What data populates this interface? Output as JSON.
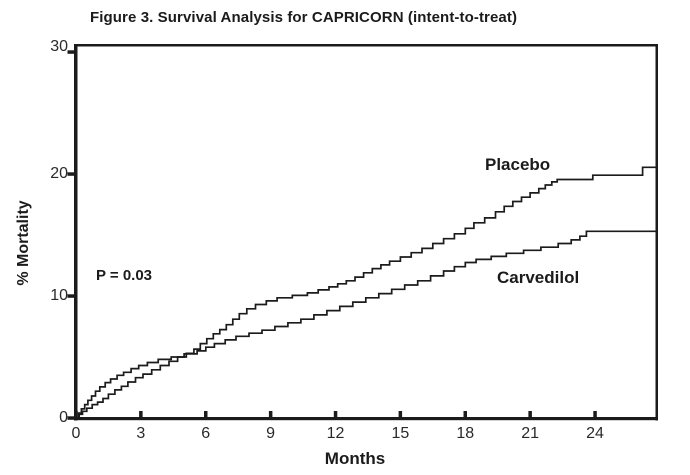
{
  "chart_data": {
    "type": "line",
    "subtype": "kaplan-meier-step",
    "title": "Figure 3. Survival Analysis for CAPRICORN (intent-to-treat)",
    "xlabel": "Months",
    "ylabel": "% Mortality",
    "xlim": [
      0,
      26.87
    ],
    "ylim": [
      0,
      30
    ],
    "x_ticks": [
      0,
      3,
      6,
      9,
      12,
      15,
      18,
      21,
      24
    ],
    "y_ticks": [
      0,
      10,
      20,
      30
    ],
    "grid": false,
    "legend": "inline-labels",
    "annotation": "P = 0.03",
    "line_color": "#1b1b1b",
    "axis_color": "#1b1b1b",
    "series": [
      {
        "name": "Placebo",
        "final_value_pct": 20.6,
        "points": [
          [
            0,
            0
          ],
          [
            0.15,
            0.3
          ],
          [
            0.3,
            0.55
          ],
          [
            0.5,
            0.8
          ],
          [
            0.75,
            1.1
          ],
          [
            1.0,
            1.3
          ],
          [
            1.25,
            1.6
          ],
          [
            1.5,
            1.95
          ],
          [
            1.8,
            2.3
          ],
          [
            2.1,
            2.6
          ],
          [
            2.4,
            2.95
          ],
          [
            2.75,
            3.3
          ],
          [
            3.1,
            3.6
          ],
          [
            3.5,
            3.95
          ],
          [
            3.9,
            4.3
          ],
          [
            4.3,
            4.65
          ],
          [
            4.7,
            5.0
          ],
          [
            5.1,
            5.3
          ],
          [
            5.45,
            5.65
          ],
          [
            5.75,
            6.1
          ],
          [
            6.05,
            6.5
          ],
          [
            6.35,
            6.9
          ],
          [
            6.65,
            7.25
          ],
          [
            6.95,
            7.65
          ],
          [
            7.25,
            8.1
          ],
          [
            7.55,
            8.55
          ],
          [
            7.9,
            8.95
          ],
          [
            8.3,
            9.3
          ],
          [
            8.8,
            9.6
          ],
          [
            9.3,
            9.85
          ],
          [
            10.0,
            10.05
          ],
          [
            10.7,
            10.25
          ],
          [
            11.2,
            10.5
          ],
          [
            11.7,
            10.75
          ],
          [
            12.1,
            11.0
          ],
          [
            12.5,
            11.25
          ],
          [
            12.9,
            11.55
          ],
          [
            13.3,
            11.9
          ],
          [
            13.7,
            12.25
          ],
          [
            14.1,
            12.55
          ],
          [
            14.5,
            12.85
          ],
          [
            15.0,
            13.2
          ],
          [
            15.5,
            13.55
          ],
          [
            16.0,
            13.9
          ],
          [
            16.5,
            14.3
          ],
          [
            17.0,
            14.7
          ],
          [
            17.5,
            15.1
          ],
          [
            18.0,
            15.55
          ],
          [
            18.4,
            16.0
          ],
          [
            18.9,
            16.4
          ],
          [
            19.4,
            16.9
          ],
          [
            19.8,
            17.35
          ],
          [
            20.2,
            17.75
          ],
          [
            20.6,
            18.1
          ],
          [
            21.0,
            18.45
          ],
          [
            21.4,
            18.8
          ],
          [
            21.7,
            19.1
          ],
          [
            22.0,
            19.35
          ],
          [
            22.25,
            19.55
          ],
          [
            23.9,
            19.9
          ],
          [
            26.2,
            20.55
          ],
          [
            26.87,
            20.55
          ]
        ]
      },
      {
        "name": "Carvedilol",
        "final_value_pct": 15.3,
        "points": [
          [
            0,
            0
          ],
          [
            0.12,
            0.4
          ],
          [
            0.25,
            0.75
          ],
          [
            0.4,
            1.1
          ],
          [
            0.55,
            1.45
          ],
          [
            0.72,
            1.8
          ],
          [
            0.9,
            2.2
          ],
          [
            1.1,
            2.55
          ],
          [
            1.35,
            2.9
          ],
          [
            1.6,
            3.2
          ],
          [
            1.9,
            3.5
          ],
          [
            2.2,
            3.75
          ],
          [
            2.55,
            4.05
          ],
          [
            2.9,
            4.3
          ],
          [
            3.3,
            4.55
          ],
          [
            3.8,
            4.8
          ],
          [
            4.4,
            5.0
          ],
          [
            5.0,
            5.25
          ],
          [
            5.6,
            5.5
          ],
          [
            6.0,
            5.8
          ],
          [
            6.4,
            6.1
          ],
          [
            6.9,
            6.4
          ],
          [
            7.4,
            6.7
          ],
          [
            8.0,
            6.95
          ],
          [
            8.6,
            7.2
          ],
          [
            9.2,
            7.5
          ],
          [
            9.8,
            7.8
          ],
          [
            10.4,
            8.1
          ],
          [
            11.0,
            8.45
          ],
          [
            11.6,
            8.8
          ],
          [
            12.2,
            9.15
          ],
          [
            12.8,
            9.5
          ],
          [
            13.4,
            9.85
          ],
          [
            14.0,
            10.2
          ],
          [
            14.6,
            10.55
          ],
          [
            15.2,
            10.9
          ],
          [
            15.8,
            11.25
          ],
          [
            16.4,
            11.65
          ],
          [
            17.0,
            12.05
          ],
          [
            17.5,
            12.4
          ],
          [
            18.0,
            12.75
          ],
          [
            18.5,
            13.0
          ],
          [
            19.2,
            13.25
          ],
          [
            19.9,
            13.5
          ],
          [
            20.7,
            13.75
          ],
          [
            21.5,
            14.0
          ],
          [
            22.3,
            14.3
          ],
          [
            22.9,
            14.6
          ],
          [
            23.3,
            14.9
          ],
          [
            23.6,
            15.3
          ],
          [
            26.87,
            15.3
          ]
        ]
      }
    ]
  }
}
